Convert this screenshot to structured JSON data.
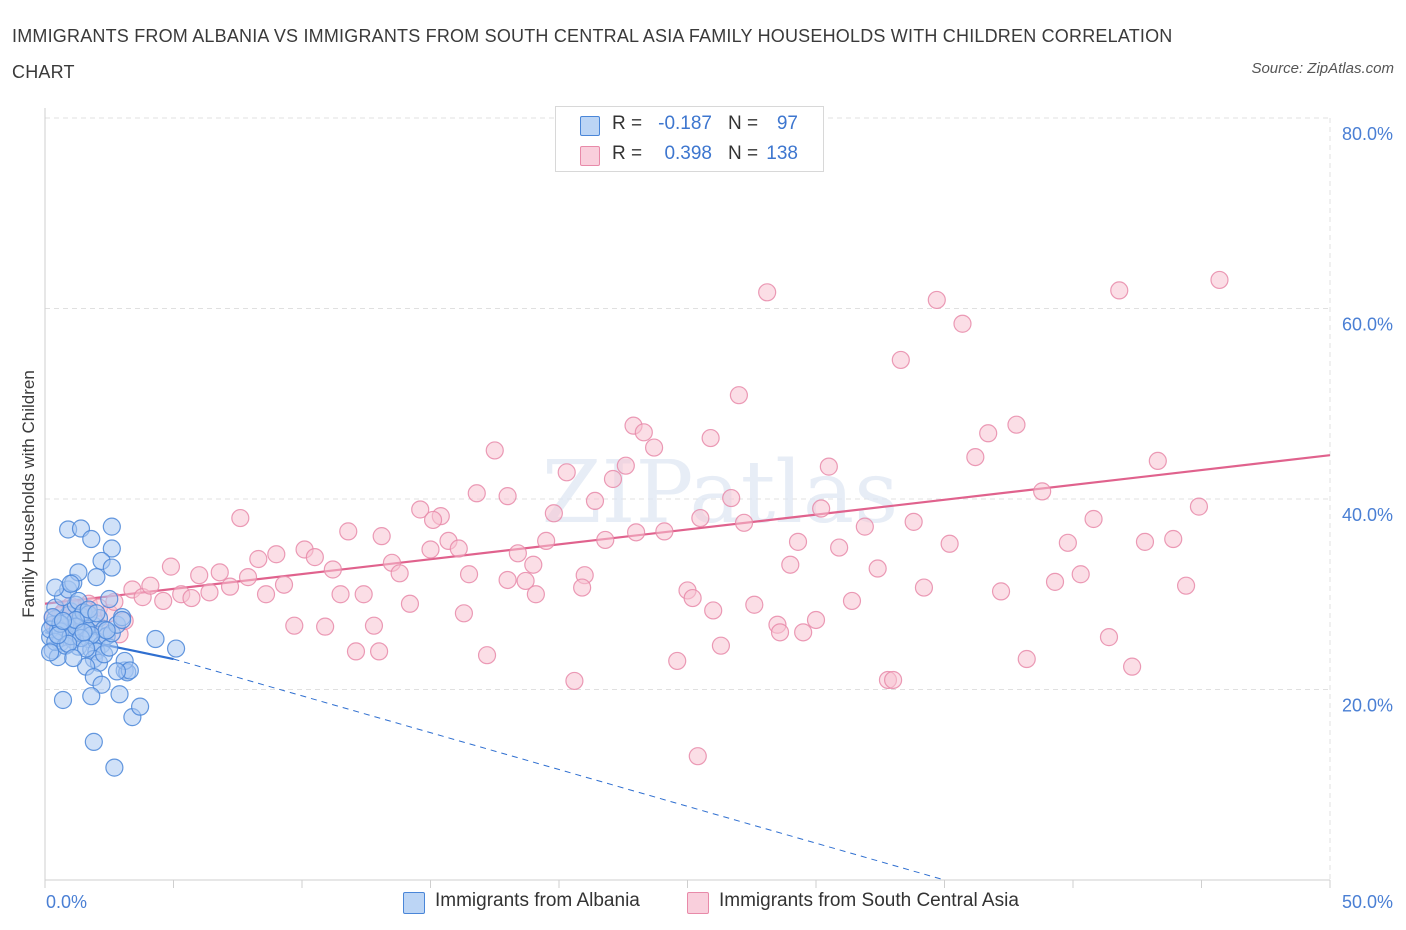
{
  "title": "IMMIGRANTS FROM ALBANIA VS IMMIGRANTS FROM SOUTH CENTRAL ASIA FAMILY HOUSEHOLDS WITH CHILDREN CORRELATION CHART",
  "source": "Source: ZipAtlas.com",
  "watermark": "ZIPatlas",
  "legend": {
    "series1": {
      "r_label": "R =",
      "r_value": "-0.187",
      "n_label": "N =",
      "n_value": "97"
    },
    "series2": {
      "r_label": "R =",
      "r_value": "0.398",
      "n_label": "N =",
      "n_value": "138"
    }
  },
  "bottom_legend": {
    "series1": "Immigrants from Albania",
    "series2": "Immigrants from South Central Asia"
  },
  "colors": {
    "series1_fill": "#a9c9f2",
    "series1_stroke": "#4a86d8",
    "series1_line": "#2f6fd0",
    "series2_fill": "#f7c2d2",
    "series2_stroke": "#e88aa9",
    "series2_line": "#e0628d",
    "tick": "#4a7fd4",
    "grid": "#e0e0e0"
  },
  "chart_data": {
    "type": "scatter",
    "ylabel": "Family Households with Children",
    "x_tick_labels": [
      "0.0%",
      "50.0%"
    ],
    "y_tick_labels": [
      "20.0%",
      "40.0%",
      "60.0%",
      "80.0%"
    ],
    "xlim": [
      0,
      50
    ],
    "ylim": [
      0,
      80
    ],
    "grid": true,
    "series": [
      {
        "name": "Immigrants from Albania",
        "trend": {
          "x": [
            0,
            5
          ],
          "y": [
            26.0,
            23.2
          ],
          "dashed_extension_to": [
            35,
            0
          ]
        },
        "points": [
          [
            0.2,
            25.5
          ],
          [
            0.3,
            26.8
          ],
          [
            0.4,
            27.4
          ],
          [
            0.5,
            26.2
          ],
          [
            0.6,
            24.9
          ],
          [
            0.7,
            25.8
          ],
          [
            0.8,
            26.5
          ],
          [
            0.9,
            27.8
          ],
          [
            1.0,
            26.0
          ],
          [
            1.1,
            25.2
          ],
          [
            1.2,
            26.9
          ],
          [
            1.3,
            24.5
          ],
          [
            1.4,
            25.9
          ],
          [
            1.5,
            27.2
          ],
          [
            1.6,
            26.1
          ],
          [
            1.7,
            25.3
          ],
          [
            1.8,
            24.2
          ],
          [
            1.9,
            26.7
          ],
          [
            2.0,
            25.1
          ],
          [
            2.1,
            27.5
          ],
          [
            2.2,
            24.7
          ],
          [
            2.3,
            26.3
          ],
          [
            2.4,
            25.6
          ],
          [
            0.3,
            24.1
          ],
          [
            0.5,
            23.4
          ],
          [
            0.6,
            25.4
          ],
          [
            0.8,
            27.0
          ],
          [
            1.0,
            28.2
          ],
          [
            1.2,
            28.9
          ],
          [
            1.4,
            27.7
          ],
          [
            1.6,
            26.4
          ],
          [
            1.8,
            25.7
          ],
          [
            2.0,
            24.0
          ],
          [
            0.4,
            28.6
          ],
          [
            0.7,
            29.7
          ],
          [
            0.9,
            30.5
          ],
          [
            1.1,
            31.2
          ],
          [
            1.3,
            29.3
          ],
          [
            1.5,
            28.1
          ],
          [
            1.7,
            27.9
          ],
          [
            1.9,
            23.2
          ],
          [
            2.1,
            22.8
          ],
          [
            2.3,
            23.7
          ],
          [
            2.5,
            24.4
          ],
          [
            2.6,
            25.9
          ],
          [
            2.8,
            26.8
          ],
          [
            3.0,
            27.6
          ],
          [
            3.1,
            22.0
          ],
          [
            3.2,
            21.8
          ],
          [
            0.2,
            26.3
          ],
          [
            0.4,
            25.0
          ],
          [
            0.6,
            26.1
          ],
          [
            0.8,
            24.6
          ],
          [
            1.0,
            25.6
          ],
          [
            1.2,
            26.6
          ],
          [
            1.4,
            25.4
          ],
          [
            1.6,
            24.3
          ],
          [
            0.9,
            36.8
          ],
          [
            1.4,
            36.9
          ],
          [
            2.6,
            37.1
          ],
          [
            2.6,
            34.8
          ],
          [
            2.2,
            33.5
          ],
          [
            1.8,
            35.8
          ],
          [
            2.0,
            31.8
          ],
          [
            1.3,
            32.3
          ],
          [
            0.4,
            30.7
          ],
          [
            1.0,
            31.1
          ],
          [
            2.5,
            29.5
          ],
          [
            3.0,
            27.3
          ],
          [
            1.6,
            22.4
          ],
          [
            1.9,
            21.3
          ],
          [
            2.2,
            20.5
          ],
          [
            2.9,
            19.5
          ],
          [
            0.7,
            18.9
          ],
          [
            1.8,
            19.3
          ],
          [
            3.4,
            17.1
          ],
          [
            3.7,
            18.2
          ],
          [
            1.9,
            14.5
          ],
          [
            2.7,
            11.8
          ],
          [
            5.1,
            24.3
          ],
          [
            4.3,
            25.3
          ],
          [
            3.1,
            23.0
          ],
          [
            2.6,
            32.8
          ],
          [
            1.2,
            27.3
          ],
          [
            0.6,
            26.9
          ],
          [
            0.3,
            27.6
          ],
          [
            0.9,
            24.8
          ],
          [
            1.5,
            26.0
          ],
          [
            2.4,
            26.2
          ],
          [
            0.2,
            23.9
          ],
          [
            1.1,
            23.3
          ],
          [
            3.3,
            22.0
          ],
          [
            2.8,
            21.9
          ],
          [
            0.5,
            25.7
          ],
          [
            1.7,
            28.4
          ],
          [
            2.0,
            28.0
          ],
          [
            0.7,
            27.2
          ]
        ]
      },
      {
        "name": "Immigrants from South Central Asia",
        "trend": {
          "x": [
            0,
            50
          ],
          "y": [
            29.0,
            44.6
          ]
        },
        "points": [
          [
            0.3,
            27.5
          ],
          [
            0.5,
            26.3
          ],
          [
            0.7,
            28.1
          ],
          [
            0.9,
            25.5
          ],
          [
            1.1,
            27.0
          ],
          [
            1.3,
            28.4
          ],
          [
            1.5,
            26.8
          ],
          [
            1.7,
            29.0
          ],
          [
            1.9,
            27.4
          ],
          [
            2.1,
            28.6
          ],
          [
            2.3,
            26.0
          ],
          [
            2.5,
            28.0
          ],
          [
            2.7,
            29.2
          ],
          [
            2.9,
            25.8
          ],
          [
            3.1,
            27.2
          ],
          [
            0.4,
            26.6
          ],
          [
            0.6,
            27.8
          ],
          [
            0.8,
            26.2
          ],
          [
            1.0,
            28.8
          ],
          [
            1.2,
            25.9
          ],
          [
            1.4,
            27.6
          ],
          [
            1.6,
            28.3
          ],
          [
            3.4,
            30.5
          ],
          [
            3.8,
            29.7
          ],
          [
            4.1,
            30.9
          ],
          [
            4.6,
            29.3
          ],
          [
            4.9,
            32.9
          ],
          [
            5.3,
            30.0
          ],
          [
            5.7,
            29.6
          ],
          [
            6.0,
            32.0
          ],
          [
            6.4,
            30.2
          ],
          [
            6.8,
            32.3
          ],
          [
            7.2,
            30.8
          ],
          [
            7.6,
            38.0
          ],
          [
            7.9,
            31.8
          ],
          [
            8.3,
            33.7
          ],
          [
            8.6,
            30.0
          ],
          [
            9.0,
            34.2
          ],
          [
            9.3,
            31.0
          ],
          [
            9.7,
            26.7
          ],
          [
            10.1,
            34.7
          ],
          [
            10.5,
            33.9
          ],
          [
            10.9,
            26.6
          ],
          [
            11.2,
            32.6
          ],
          [
            11.5,
            30.0
          ],
          [
            11.8,
            36.6
          ],
          [
            12.1,
            24.0
          ],
          [
            12.4,
            30.0
          ],
          [
            12.8,
            26.7
          ],
          [
            13.1,
            36.1
          ],
          [
            13.5,
            33.3
          ],
          [
            13.8,
            32.2
          ],
          [
            14.2,
            29.0
          ],
          [
            14.6,
            38.9
          ],
          [
            15.0,
            34.7
          ],
          [
            15.4,
            38.2
          ],
          [
            15.7,
            35.6
          ],
          [
            16.1,
            34.8
          ],
          [
            16.5,
            32.1
          ],
          [
            16.8,
            40.6
          ],
          [
            17.2,
            23.6
          ],
          [
            17.5,
            45.1
          ],
          [
            18.0,
            40.3
          ],
          [
            18.4,
            34.3
          ],
          [
            18.7,
            31.4
          ],
          [
            19.1,
            30.0
          ],
          [
            19.5,
            35.6
          ],
          [
            19.8,
            38.5
          ],
          [
            20.3,
            42.8
          ],
          [
            20.6,
            20.9
          ],
          [
            21.0,
            32.0
          ],
          [
            21.4,
            39.8
          ],
          [
            21.8,
            35.7
          ],
          [
            22.1,
            42.1
          ],
          [
            22.6,
            43.5
          ],
          [
            22.9,
            47.7
          ],
          [
            23.3,
            47.0
          ],
          [
            23.7,
            45.4
          ],
          [
            24.1,
            36.6
          ],
          [
            24.6,
            23.0
          ],
          [
            25.0,
            30.4
          ],
          [
            25.5,
            38.0
          ],
          [
            25.9,
            46.4
          ],
          [
            26.3,
            24.6
          ],
          [
            26.7,
            40.1
          ],
          [
            27.2,
            37.5
          ],
          [
            27.6,
            28.9
          ],
          [
            28.1,
            61.7
          ],
          [
            28.5,
            26.8
          ],
          [
            29.0,
            33.1
          ],
          [
            29.5,
            26.0
          ],
          [
            30.0,
            27.3
          ],
          [
            30.5,
            43.4
          ],
          [
            30.9,
            34.9
          ],
          [
            31.4,
            29.3
          ],
          [
            31.9,
            37.1
          ],
          [
            32.4,
            32.7
          ],
          [
            32.8,
            21.0
          ],
          [
            33.3,
            54.6
          ],
          [
            33.8,
            37.6
          ],
          [
            34.2,
            30.7
          ],
          [
            34.7,
            60.9
          ],
          [
            35.2,
            35.3
          ],
          [
            35.7,
            58.4
          ],
          [
            36.2,
            44.4
          ],
          [
            36.7,
            46.9
          ],
          [
            37.2,
            30.3
          ],
          [
            37.8,
            47.8
          ],
          [
            38.2,
            23.2
          ],
          [
            38.8,
            40.8
          ],
          [
            39.3,
            31.3
          ],
          [
            39.8,
            35.4
          ],
          [
            40.3,
            32.1
          ],
          [
            40.8,
            37.9
          ],
          [
            41.4,
            25.5
          ],
          [
            41.8,
            61.9
          ],
          [
            42.3,
            22.4
          ],
          [
            42.8,
            35.5
          ],
          [
            43.3,
            44.0
          ],
          [
            43.9,
            35.8
          ],
          [
            44.4,
            30.9
          ],
          [
            44.9,
            39.2
          ],
          [
            45.7,
            63.0
          ],
          [
            27.0,
            50.9
          ],
          [
            23.0,
            36.5
          ],
          [
            19.0,
            33.1
          ],
          [
            26.0,
            28.3
          ],
          [
            28.6,
            26.0
          ],
          [
            30.2,
            39.0
          ],
          [
            20.9,
            30.7
          ],
          [
            15.1,
            37.8
          ],
          [
            13.0,
            24.0
          ],
          [
            16.3,
            28.0
          ],
          [
            18.0,
            31.5
          ],
          [
            25.2,
            29.6
          ],
          [
            29.3,
            35.5
          ],
          [
            33.0,
            21.0
          ],
          [
            25.4,
            13.0
          ]
        ]
      }
    ]
  }
}
